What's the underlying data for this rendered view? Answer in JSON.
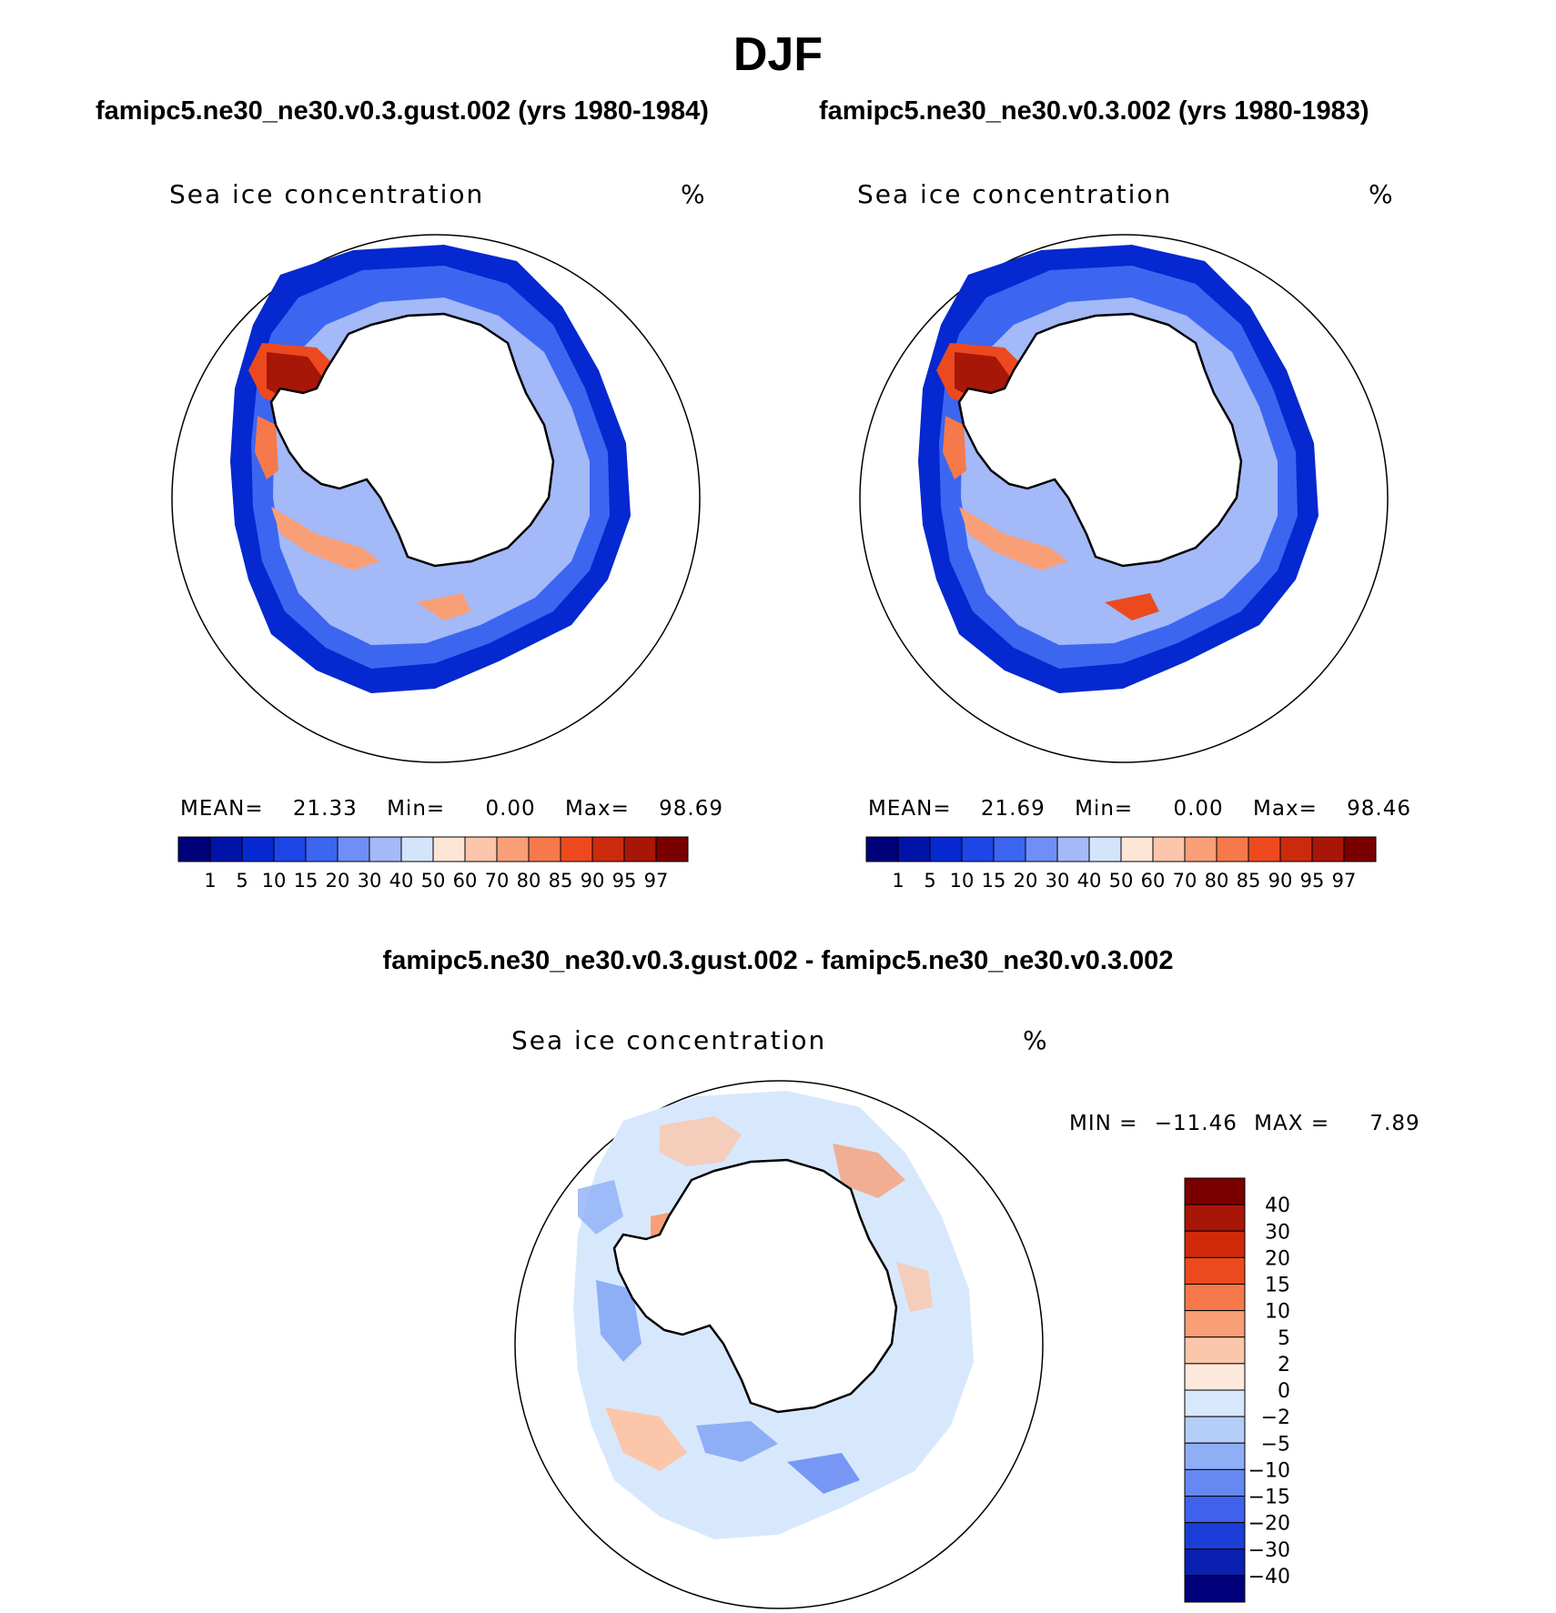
{
  "title": "DJF",
  "panels": [
    {
      "case_title": "famipc5.ne30_ne30.v0.3.gust.002 (yrs 1980-1984)",
      "variable": "Sea ice concentration",
      "units": "%",
      "stats": {
        "mean_label": "MEAN=",
        "mean": "21.33",
        "min_label": "Min=",
        "min": "0.00",
        "max_label": "Max=",
        "max": "98.69"
      }
    },
    {
      "case_title": "famipc5.ne30_ne30.v0.3.002 (yrs 1980-1983)",
      "variable": "Sea ice concentration",
      "units": "%",
      "stats": {
        "mean_label": "MEAN=",
        "mean": "21.69",
        "min_label": "Min=",
        "min": "0.00",
        "max_label": "Max=",
        "max": "98.46"
      }
    }
  ],
  "diff_panel": {
    "case_title": "famipc5.ne30_ne30.v0.3.gust.002 - famipc5.ne30_ne30.v0.3.002",
    "variable": "Sea ice concentration",
    "units": "%",
    "min_label": "MIN =",
    "min": "−11.46",
    "max_label": "MAX =",
    "max": "7.89"
  },
  "colorbar_levels": [
    "1",
    "5",
    "10",
    "15",
    "20",
    "30",
    "40",
    "50",
    "60",
    "70",
    "80",
    "85",
    "90",
    "95",
    "97"
  ],
  "colorbar_colors": [
    "#00007a",
    "#0014a8",
    "#0528d0",
    "#1c46e6",
    "#3c66f0",
    "#6e8ff5",
    "#a3b9f8",
    "#d4e4fb",
    "#fde5d6",
    "#fbc6aa",
    "#f89f78",
    "#f5794b",
    "#ec4a1e",
    "#cc2a0d",
    "#a81608",
    "#7a0000"
  ],
  "diff_levels": [
    "40",
    "30",
    "20",
    "15",
    "10",
    "5",
    "2",
    "0",
    "−2",
    "−5",
    "−10",
    "−15",
    "−20",
    "−30",
    "−40"
  ],
  "diff_colors": [
    "#7a0000",
    "#a81608",
    "#d02a0a",
    "#ec4a1e",
    "#f5794b",
    "#f89f78",
    "#fbc6aa",
    "#fde9dc",
    "#d8e8fc",
    "#b5cdf9",
    "#8eaff6",
    "#6688f2",
    "#3e62ec",
    "#1c3ed8",
    "#0a20b0",
    "#00007a"
  ]
}
